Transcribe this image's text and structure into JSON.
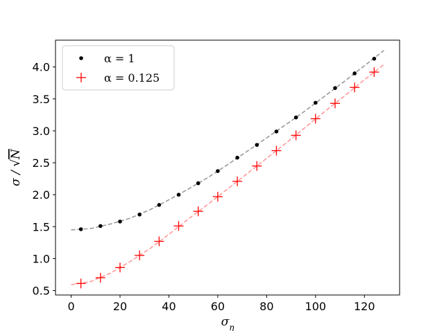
{
  "chart_data": {
    "type": "scatter",
    "xlabel": "σ_η",
    "ylabel": "σ / √N",
    "xlim": [
      -6.4,
      134.4
    ],
    "ylim": [
      0.43,
      4.42
    ],
    "xticks": [
      0,
      20,
      40,
      60,
      80,
      100,
      120
    ],
    "yticks": [
      0.5,
      1.0,
      1.5,
      2.0,
      2.5,
      3.0,
      3.5,
      4.0
    ],
    "xtick_labels": [
      "0",
      "20",
      "40",
      "60",
      "80",
      "100",
      "120"
    ],
    "ytick_labels": [
      "0.5",
      "1.0",
      "1.5",
      "2.0",
      "2.5",
      "3.0",
      "3.5",
      "4.0"
    ],
    "grid": false,
    "legend_position": "top-left",
    "x": [
      4,
      12,
      20,
      28,
      36,
      44,
      52,
      60,
      68,
      76,
      84,
      92,
      100,
      108,
      116,
      124
    ],
    "series": [
      {
        "name": "α = 1",
        "marker": "dot",
        "color": "#000000",
        "values": [
          1.46,
          1.51,
          1.58,
          1.69,
          1.84,
          2.0,
          2.18,
          2.37,
          2.58,
          2.78,
          2.99,
          3.21,
          3.44,
          3.67,
          3.9,
          4.13
        ]
      },
      {
        "name": "α = 0.125",
        "marker": "plus",
        "color": "#ff0000",
        "values": [
          0.61,
          0.7,
          0.86,
          1.05,
          1.27,
          1.51,
          1.74,
          1.97,
          2.21,
          2.45,
          2.69,
          2.93,
          3.19,
          3.43,
          3.68,
          3.92
        ]
      }
    ],
    "fit_curves": [
      {
        "color": "#999999",
        "x": [
          0,
          8,
          16,
          24,
          32,
          40,
          48,
          56,
          64,
          72,
          80,
          88,
          96,
          104,
          112,
          120,
          128
        ],
        "values": [
          1.45,
          1.47,
          1.54,
          1.63,
          1.76,
          1.92,
          2.09,
          2.27,
          2.47,
          2.68,
          2.89,
          3.1,
          3.32,
          3.55,
          3.78,
          4.02,
          4.26
        ]
      },
      {
        "color": "#ff9999",
        "x": [
          0,
          8,
          16,
          24,
          32,
          40,
          48,
          56,
          64,
          72,
          80,
          88,
          96,
          104,
          112,
          120,
          128
        ],
        "values": [
          0.59,
          0.64,
          0.77,
          0.95,
          1.15,
          1.38,
          1.62,
          1.85,
          2.09,
          2.33,
          2.57,
          2.81,
          3.06,
          3.31,
          3.55,
          3.8,
          4.04
        ]
      }
    ]
  }
}
